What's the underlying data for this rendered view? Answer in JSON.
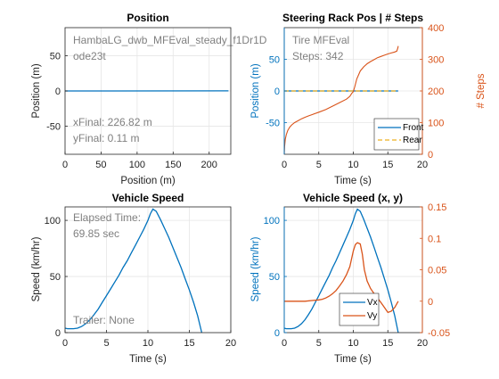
{
  "colors": {
    "blue": "#0072BD",
    "orange": "#D95319",
    "yellow": "#EDB120",
    "annotation": "#808080",
    "grid": "#e6e6e6"
  },
  "chart_data": [
    {
      "id": "position",
      "type": "line",
      "title": "Position",
      "xlabel": "Position (m)",
      "ylabel": "Position (m)",
      "xlim": [
        0,
        230
      ],
      "ylim": [
        -90,
        90
      ],
      "xticks": [
        "0",
        "50",
        "100",
        "150",
        "200"
      ],
      "yticks": [
        "-50",
        "0",
        "50"
      ],
      "grid": true,
      "series": [
        {
          "x": [
            0,
            226.82
          ],
          "y": [
            0,
            0.11
          ]
        }
      ],
      "annotations": {
        "file_line1": "HambaLG_dwb_MFEval_steady_f1Dr1D",
        "file_line2": "ode23t",
        "xfinal": "xFinal: 226.82 m",
        "yfinal": "yFinal: 0.11 m"
      }
    },
    {
      "id": "steering",
      "type": "line",
      "title": "Steering Rack Pos | # Steps",
      "xlabel": "Time (s)",
      "ylabel": "Position (m)",
      "ylabel_right": "# Steps",
      "xlim": [
        0,
        20
      ],
      "ylim": [
        -100,
        100
      ],
      "ylim_right": [
        0,
        400
      ],
      "xticks": [
        "0",
        "5",
        "10",
        "15",
        "20"
      ],
      "yticks": [
        "-50",
        "0",
        "50"
      ],
      "yticks_right": [
        "0",
        "100",
        "200",
        "300",
        "400"
      ],
      "grid": true,
      "legend": [
        "Front",
        "Rear"
      ],
      "legend_position": "bottom-right",
      "series": [
        {
          "name": "Front",
          "x": [
            0,
            16.5
          ],
          "y": [
            0,
            0
          ]
        },
        {
          "name": "Rear",
          "x": [
            0,
            16.5
          ],
          "y": [
            0,
            0
          ]
        }
      ],
      "steps_series": {
        "x": [
          0,
          0.05,
          0.15,
          0.3,
          0.5,
          0.8,
          1.1,
          1.5,
          2,
          2.5,
          3,
          3.5,
          4,
          5,
          6,
          7,
          8,
          9,
          9.5,
          9.8,
          10.0,
          10.2,
          10.5,
          11,
          11.5,
          12,
          12.5,
          13,
          13.5,
          14,
          14.5,
          15,
          15.5,
          16,
          16.3,
          16.45,
          16.5
        ],
        "y": [
          0,
          25,
          48,
          62,
          75,
          86,
          93,
          100,
          106,
          112,
          117,
          121,
          125,
          133,
          141,
          152,
          163,
          174,
          183,
          193,
          198,
          213,
          238,
          263,
          276,
          286,
          293,
          299,
          305,
          309,
          313,
          317,
          320,
          323,
          326,
          336,
          342
        ]
      },
      "annotations": {
        "label": "Tire MFEval",
        "steps": "Steps: 342"
      }
    },
    {
      "id": "speed",
      "type": "line",
      "title": "Vehicle Speed",
      "xlabel": "Time (s)",
      "ylabel": "Speed (km/hr)",
      "xlim": [
        0,
        20
      ],
      "ylim": [
        0,
        112
      ],
      "xticks": [
        "0",
        "5",
        "10",
        "15",
        "20"
      ],
      "yticks": [
        "0",
        "50",
        "100"
      ],
      "grid": true,
      "series": [
        {
          "x": [
            0,
            0.3,
            1,
            1.5,
            2,
            2.5,
            3,
            3.5,
            4,
            4.5,
            5,
            5.5,
            6,
            6.5,
            7,
            7.5,
            8,
            8.5,
            9,
            9.5,
            10,
            10.3,
            10.6,
            11,
            11.5,
            12,
            12.5,
            13,
            13.5,
            14,
            14.5,
            15,
            15.5,
            16,
            16.5
          ],
          "y": [
            4,
            3.5,
            3.5,
            4,
            5.5,
            8,
            11.5,
            16,
            21,
            27,
            33,
            39,
            45,
            51,
            58,
            64,
            71,
            78,
            85,
            92,
            100,
            106,
            110,
            108,
            101,
            93,
            85,
            76,
            67,
            58,
            48,
            38,
            27,
            15,
            0
          ]
        }
      ],
      "annotations": {
        "elapsed_label": "Elapsed Time:",
        "elapsed_value": "69.85 sec",
        "trailer": "Trailer: None"
      }
    },
    {
      "id": "speed_xy",
      "type": "line",
      "title": "Vehicle Speed (x, y)",
      "xlabel": "Time (s)",
      "ylabel": "Speed (km/hr)",
      "xlim": [
        0,
        20
      ],
      "ylim": [
        0,
        112
      ],
      "ylim_right": [
        -0.05,
        0.15
      ],
      "xticks": [
        "0",
        "5",
        "10",
        "15",
        "20"
      ],
      "yticks": [
        "0",
        "50",
        "100"
      ],
      "yticks_right": [
        "-0.05",
        "0",
        "0.05",
        "0.1",
        "0.15"
      ],
      "grid": true,
      "legend": [
        "Vx",
        "Vy"
      ],
      "legend_position": "bottom-center",
      "series": [
        {
          "name": "Vx",
          "x": [
            0,
            0.3,
            1,
            1.5,
            2,
            2.5,
            3,
            3.5,
            4,
            4.5,
            5,
            5.5,
            6,
            6.5,
            7,
            7.5,
            8,
            8.5,
            9,
            9.5,
            10,
            10.3,
            10.6,
            11,
            11.5,
            12,
            12.5,
            13,
            13.5,
            14,
            14.5,
            15,
            15.5,
            16,
            16.5
          ],
          "y": [
            4,
            3.5,
            3.5,
            4,
            5.5,
            8,
            11.5,
            16,
            21,
            27,
            33,
            39,
            45,
            51,
            58,
            64,
            71,
            78,
            85,
            92,
            100,
            106,
            110,
            108,
            101,
            93,
            85,
            76,
            67,
            58,
            48,
            38,
            27,
            15,
            0
          ]
        },
        {
          "name": "Vy",
          "x": [
            0,
            1,
            2,
            3,
            4,
            5,
            5.5,
            6,
            6.5,
            7,
            7.5,
            8,
            8.5,
            9,
            9.5,
            10,
            10.3,
            10.6,
            11,
            11.3,
            11.6,
            12,
            12.5,
            13,
            13.5,
            14,
            14.5,
            15,
            15.5,
            16,
            16.5
          ],
          "y": [
            0,
            0,
            0,
            0,
            0.001,
            0.002,
            0.003,
            0.005,
            0.008,
            0.012,
            0.017,
            0.024,
            0.032,
            0.042,
            0.055,
            0.08,
            0.09,
            0.093,
            0.091,
            0.075,
            0.05,
            0.032,
            0.02,
            0.012,
            0.005,
            -0.002,
            -0.01,
            -0.018,
            -0.016,
            -0.01,
            0
          ]
        }
      ]
    }
  ]
}
